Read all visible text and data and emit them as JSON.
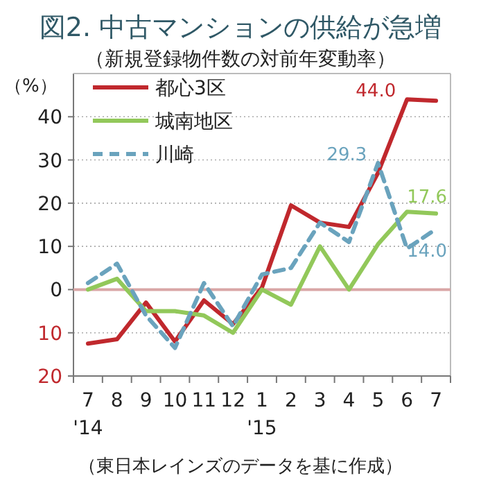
{
  "chart_data": {
    "type": "line",
    "title": "図2. 中古マンションの供給が急増",
    "subtitle": "（新規登録物件数の対前年変動率）",
    "ylabel": "（%）",
    "categories": [
      "7\n'14",
      "8",
      "9",
      "10",
      "11",
      "12",
      "1\n'15",
      "2",
      "3",
      "4",
      "5",
      "6",
      "7"
    ],
    "series": [
      {
        "name": "都心3区",
        "color": "#c0282d",
        "values": [
          -12.5,
          -11.5,
          -3,
          -12,
          -2.5,
          -8,
          0.5,
          19.5,
          15.5,
          14.5,
          27,
          44.0,
          43.7
        ],
        "value_labels": [
          null,
          null,
          null,
          null,
          null,
          null,
          null,
          null,
          null,
          null,
          null,
          "44.0",
          null
        ]
      },
      {
        "name": "城南地区",
        "color": "#92c85a",
        "values": [
          0,
          2.5,
          -5,
          -5,
          -6,
          -10,
          0,
          -3.5,
          10,
          0,
          10.5,
          18,
          17.6
        ],
        "value_labels": [
          null,
          null,
          null,
          null,
          null,
          null,
          null,
          null,
          null,
          null,
          null,
          null,
          "17.6"
        ]
      },
      {
        "name": "川崎",
        "color": "#6aa3bd",
        "line_style": "dashed",
        "values": [
          1.5,
          6,
          -6,
          -13.5,
          1.5,
          -8.5,
          3.5,
          5,
          15.5,
          11,
          29.3,
          9.5,
          14.0
        ],
        "value_labels": [
          null,
          null,
          null,
          null,
          null,
          null,
          null,
          null,
          null,
          null,
          "29.3",
          null,
          "14.0"
        ]
      }
    ],
    "ylim": [
      -20,
      50
    ],
    "yticks": [
      {
        "value": -20,
        "label": "20"
      },
      {
        "value": -10,
        "label": "10"
      },
      0,
      10,
      20,
      30,
      40
    ],
    "grid": "y",
    "legend": "top left",
    "ref_lines": [
      {
        "axis": "y",
        "value": 0,
        "color": "#d9a6a6"
      }
    ],
    "annotations": [
      "（東日本レインズのデータを基に作成）"
    ]
  }
}
